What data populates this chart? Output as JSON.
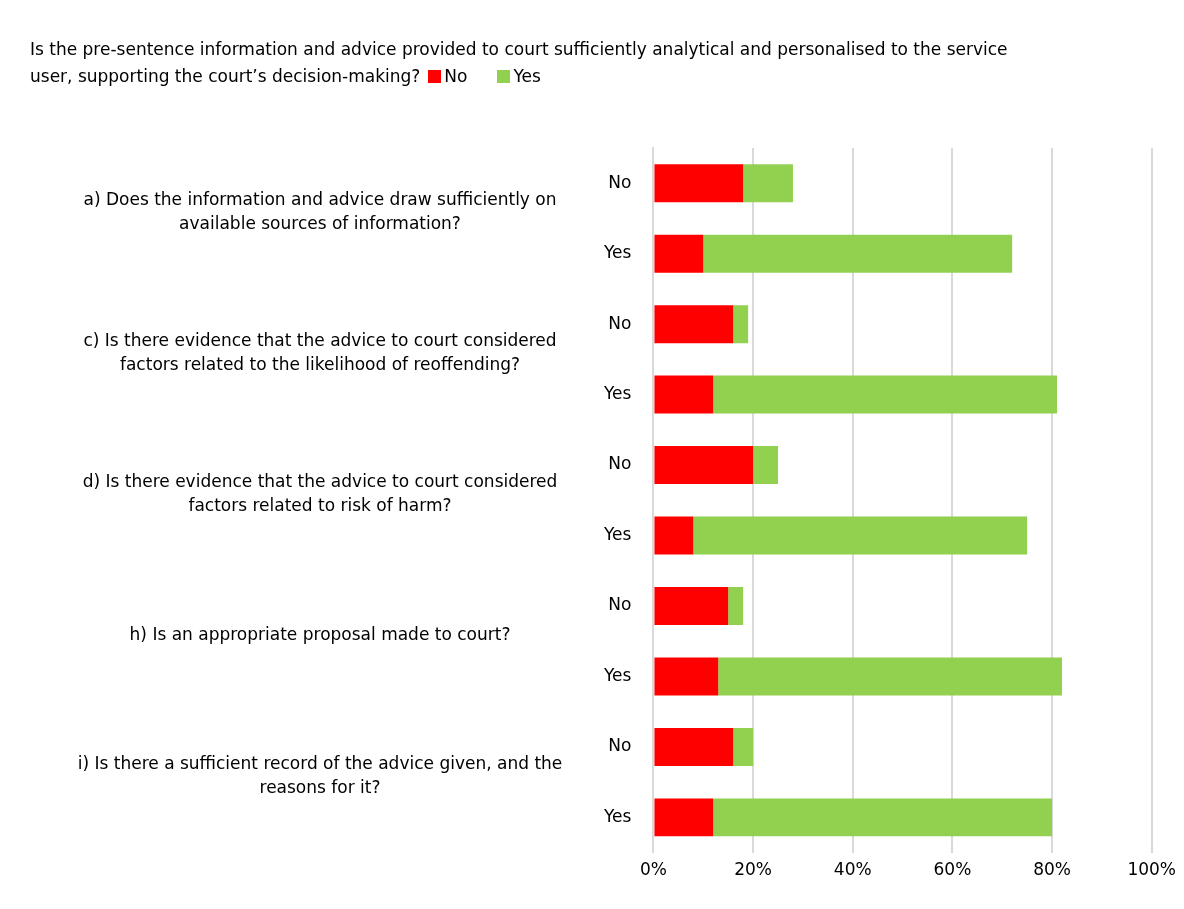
{
  "chart_data": {
    "type": "bar",
    "orientation": "horizontal",
    "stacked": true,
    "title": "Is the pre-sentence information and advice provided to court sufficiently analytical and personalised to the service user, supporting the court’s decision-making?",
    "categories": [
      "No",
      "Yes",
      "No",
      "Yes",
      "No",
      "Yes",
      "No",
      "Yes",
      "No",
      "Yes"
    ],
    "series": [
      {
        "name": "No",
        "color": "#ff0000",
        "values": [
          18,
          10,
          16,
          12,
          20,
          8,
          15,
          13,
          16,
          12
        ]
      },
      {
        "name": "Yes",
        "color": "#92d050",
        "values": [
          10,
          62,
          3,
          69,
          5,
          67,
          3,
          69,
          4,
          68
        ]
      }
    ],
    "annotations": [
      "a) Does the information and advice draw sufficiently on available sources of information?",
      "c) Is there evidence that the advice to court considered factors related to the likelihood of reoffending?",
      "d) Is there evidence that the advice to court considered factors related to risk of harm?",
      "h) Is an appropriate proposal made to court?",
      "i) Is there a sufficient record of the advice given, and the reasons for it?"
    ],
    "xlim": [
      0,
      100
    ],
    "xticks": [
      {
        "value": 0,
        "label": "0%"
      },
      {
        "value": 20,
        "label": "20%"
      },
      {
        "value": 40,
        "label": "40%"
      },
      {
        "value": 60,
        "label": "60%"
      },
      {
        "value": 80,
        "label": "80%"
      },
      {
        "value": 100,
        "label": "100%"
      }
    ],
    "grid": "x",
    "legend": "top left"
  }
}
